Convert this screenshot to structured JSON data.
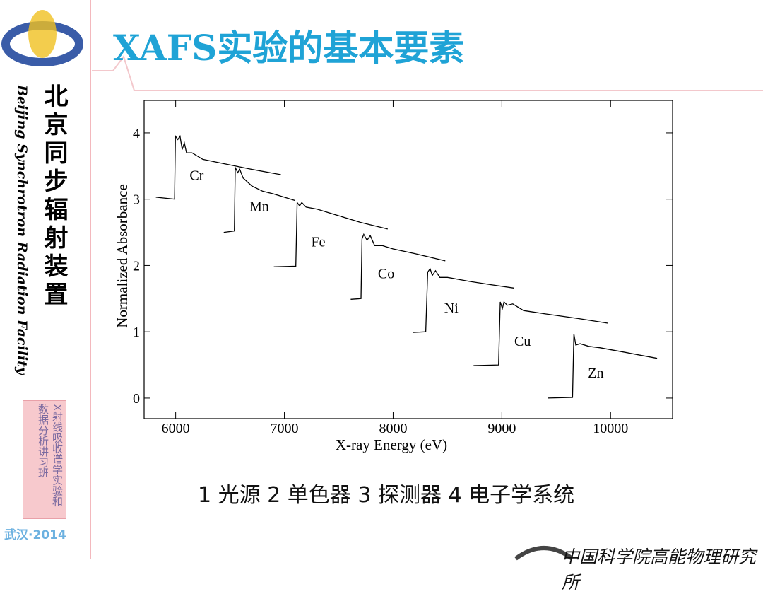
{
  "title": "XAFS实验的基本要素",
  "caption": "1 光源 2 单色器 3 探测器 4 电子学系统",
  "sidebar": {
    "name_cn": "北京同步辐射装置",
    "name_en": "Beijing Synchrotron Radiation Facility",
    "workshop": "X射线吸收谱学实验和数据分析讲习班",
    "event": "武汉·2014"
  },
  "footer": "中国科学院高能物理研究所",
  "chart_data": {
    "type": "line",
    "xlabel": "X-ray Energy (eV)",
    "ylabel": "Normalized Absorbance",
    "xlim": [
      5710,
      10570
    ],
    "ylim": [
      -0.31,
      4.49
    ],
    "xticks": [
      6000,
      7000,
      8000,
      9000,
      10000
    ],
    "yticks": [
      0,
      1,
      2,
      3,
      4
    ],
    "color": "#000000",
    "series": [
      {
        "name": "Cr",
        "x": [
          5818,
          5990,
          5998,
          6020,
          6040,
          6060,
          6080,
          6100,
          6150,
          6250,
          6400,
          6700,
          6968
        ],
        "values": [
          3.03,
          3.0,
          3.95,
          3.9,
          3.95,
          3.75,
          3.85,
          3.7,
          3.7,
          3.6,
          3.55,
          3.45,
          3.37
        ]
      },
      {
        "name": "Mn",
        "x": [
          6442,
          6540,
          6548,
          6570,
          6590,
          6620,
          6700,
          6800,
          6900,
          7000,
          7100
        ],
        "values": [
          2.5,
          2.52,
          3.48,
          3.4,
          3.45,
          3.32,
          3.2,
          3.12,
          3.08,
          3.03,
          2.98
        ]
      },
      {
        "name": "Fe",
        "x": [
          6903,
          7105,
          7117,
          7140,
          7160,
          7200,
          7300,
          7500,
          7700,
          7950
        ],
        "values": [
          1.98,
          1.99,
          2.95,
          2.9,
          2.95,
          2.88,
          2.85,
          2.75,
          2.65,
          2.55
        ]
      },
      {
        "name": "Co",
        "x": [
          7610,
          7705,
          7714,
          7730,
          7760,
          7790,
          7830,
          7900,
          8000,
          8200,
          8480
        ],
        "values": [
          1.49,
          1.5,
          2.4,
          2.47,
          2.38,
          2.45,
          2.3,
          2.3,
          2.25,
          2.18,
          2.07
        ]
      },
      {
        "name": "Ni",
        "x": [
          8182,
          8300,
          8318,
          8340,
          8360,
          8390,
          8430,
          8500,
          8700,
          8900,
          9110
        ],
        "values": [
          0.99,
          1.0,
          1.9,
          1.95,
          1.85,
          1.92,
          1.82,
          1.82,
          1.76,
          1.71,
          1.66
        ]
      },
      {
        "name": "Cu",
        "x": [
          8740,
          8970,
          8985,
          9005,
          9020,
          9050,
          9100,
          9200,
          9400,
          9700,
          9974
        ],
        "values": [
          0.49,
          0.5,
          1.45,
          1.35,
          1.45,
          1.4,
          1.42,
          1.32,
          1.27,
          1.2,
          1.13
        ]
      },
      {
        "name": "Zn",
        "x": [
          9422,
          9650,
          9662,
          9680,
          9720,
          9800,
          9900,
          10100,
          10428
        ],
        "values": [
          0,
          0.01,
          0.97,
          0.8,
          0.82,
          0.78,
          0.76,
          0.7,
          0.6
        ]
      }
    ]
  }
}
